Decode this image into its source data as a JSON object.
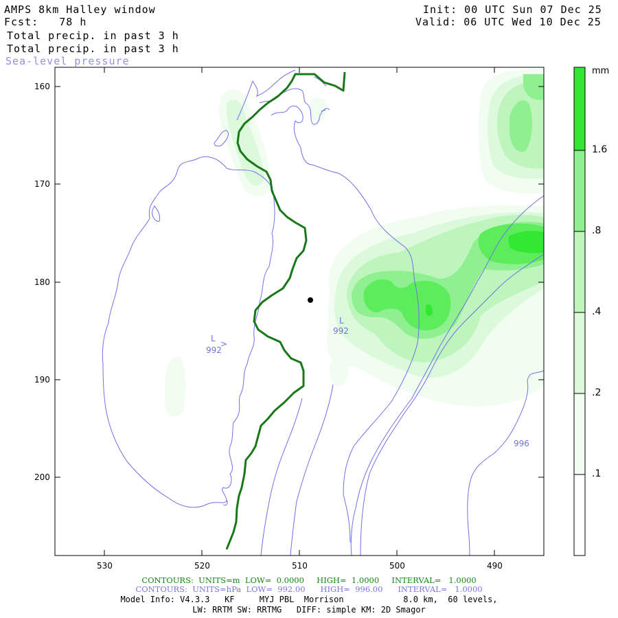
{
  "header": {
    "title": "AMPS 8km Halley window",
    "fcst": "Fcst:   78 h",
    "init": "Init: 00 UTC Sun 07 Dec 25",
    "valid": "Valid: 06 UTC Wed 10 Dec 25",
    "line1": "Total precip. in past 3 h",
    "line2": "Total precip. in past 3 h",
    "line3": "Sea-level pressure"
  },
  "axes": {
    "y_ticks": [
      "160",
      "170",
      "180",
      "190",
      "200"
    ],
    "x_ticks": [
      "530",
      "520",
      "510",
      "500",
      "490"
    ]
  },
  "colorbar": {
    "unit": "mm",
    "labels": [
      "1.6",
      ".8",
      ".4",
      ".2",
      ".1"
    ],
    "colors": [
      "#ffffff",
      "#f2fdf2",
      "#dcf9dc",
      "#bdf5bd",
      "#8ef08e",
      "#5cec5c",
      "#33e833"
    ]
  },
  "map_labels": {
    "low1": "L",
    "low1_value": "992",
    "low2": "L",
    "low2_value": "992",
    "isobar_996": "996"
  },
  "colors": {
    "isobar": "#7070e8",
    "contour": "#187818",
    "footer_green": "#118811",
    "footer_blue": "#7777dd"
  },
  "footer": {
    "line1": "CONTOURS:  UNITS=m  LOW=  0.0000     HIGH=  1.0000     INTERVAL=   1.0000",
    "line2": "CONTOURS:  UNITS=hPa  LOW=  992.00      HIGH=  996.00      INTERVAL=   1.0000",
    "line3": "Model Info: V4.3.3   KF     MYJ PBL  Morrison            8.0 km,  60 levels,",
    "line4": "LW: RRTM SW: RRTMG   DIFF: simple KM: 2D Smagor"
  }
}
